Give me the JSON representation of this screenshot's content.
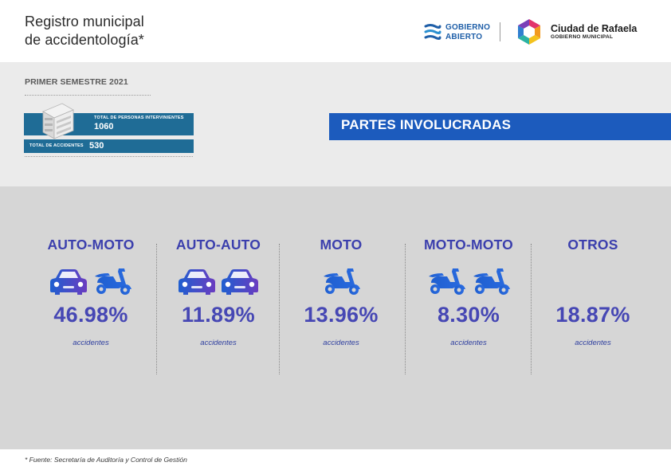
{
  "header": {
    "title_line1": "Registro municipal",
    "title_line2": "de accidentología*",
    "logo_gobierno_line1": "GOBIERNO",
    "logo_gobierno_line2": "ABIERTO",
    "logo_ciudad_name": "Ciudad de Rafaela",
    "logo_ciudad_sub": "GOBIERNO MUNICIPAL"
  },
  "summary": {
    "period": "PRIMER SEMESTRE 2021",
    "personas_label": "TOTAL DE PERSONAS INTERVINIENTES",
    "personas_value": "1060",
    "accidentes_label": "TOTAL DE ACCIDENTES",
    "accidentes_value": "530"
  },
  "section": {
    "title": "PARTES INVOLUCRADAS"
  },
  "chart_data": {
    "type": "table",
    "categories": [
      "AUTO-MOTO",
      "AUTO-AUTO",
      "MOTO",
      "MOTO-MOTO",
      "OTROS"
    ],
    "values": [
      46.98,
      11.89,
      13.96,
      8.3,
      18.87
    ],
    "unit": "accidentes",
    "value_labels": [
      "46.98%",
      "11.89%",
      "13.96%",
      "8.30%",
      "18.87%"
    ],
    "icons": [
      [
        "car-icon",
        "scooter-icon"
      ],
      [
        "car-icon",
        "car-icon"
      ],
      [
        "scooter-icon"
      ],
      [
        "scooter-icon",
        "scooter-icon"
      ],
      []
    ]
  },
  "colors": {
    "accent_blue": "#1c5bbd",
    "stat_box": "#1f6c96",
    "category_text": "#3b3fad",
    "icon_blue": "#1f5fd0",
    "icon_purple": "#6a3cc0"
  },
  "footnote": "* Fuente:  Secretaría de Auditoría y Control de Gestión"
}
